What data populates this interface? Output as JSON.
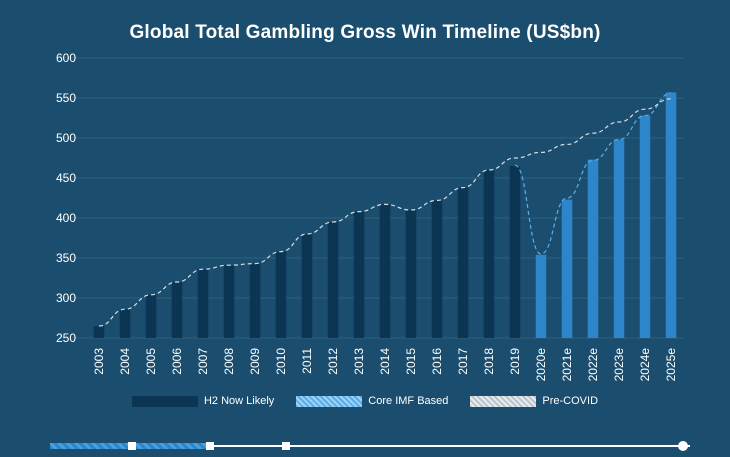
{
  "chart_data": {
    "type": "bar",
    "title": "Global Total Gambling Gross Win Timeline (US$bn)",
    "xlabel": "",
    "ylabel": "",
    "ylim": [
      250,
      600
    ],
    "yticks": [
      250,
      300,
      350,
      400,
      450,
      500,
      550,
      600
    ],
    "grid": true,
    "legend_position": "bottom",
    "categories": [
      "2003",
      "2004",
      "2005",
      "2006",
      "2007",
      "2008",
      "2009",
      "2010",
      "2011",
      "2012",
      "2013",
      "2014",
      "2015",
      "2016",
      "2017",
      "2018",
      "2019",
      "2020e",
      "2021e",
      "2022e",
      "2023e",
      "2024e",
      "2025e"
    ],
    "series": [
      {
        "name": "H2 Now Likely",
        "kind": "bar",
        "color": "#0b3552",
        "values": [
          265,
          286,
          304,
          320,
          336,
          341,
          343,
          358,
          380,
          395,
          408,
          417,
          410,
          422,
          438,
          460,
          465,
          null,
          null,
          null,
          null,
          null,
          null
        ]
      },
      {
        "name": "Core IMF Based",
        "kind": "dashed-line",
        "color": "#5aaee8",
        "values": [
          null,
          null,
          null,
          null,
          null,
          null,
          null,
          null,
          null,
          null,
          null,
          null,
          null,
          null,
          null,
          null,
          466,
          355,
          425,
          472,
          498,
          528,
          556
        ]
      },
      {
        "name": "Pre-COVID",
        "kind": "dashed-line",
        "color": "#d7dde2",
        "values": [
          265,
          286,
          304,
          320,
          336,
          341,
          343,
          358,
          380,
          395,
          408,
          417,
          410,
          422,
          438,
          460,
          475,
          482,
          492,
          506,
          520,
          536,
          549
        ]
      }
    ],
    "forecast_bars": {
      "color": "#2d86c9",
      "values": [
        null,
        null,
        null,
        null,
        null,
        null,
        null,
        null,
        null,
        null,
        null,
        null,
        null,
        null,
        null,
        null,
        null,
        354,
        423,
        473,
        498,
        528,
        557
      ]
    }
  },
  "legend": {
    "items": [
      {
        "label": "H2 Now Likely"
      },
      {
        "label": "Core IMF Based"
      },
      {
        "label": "Pre-COVID"
      }
    ]
  },
  "colors": {
    "background": "#1b4d6e",
    "grid": "#2f607f",
    "axis_text": "#ffffff"
  }
}
